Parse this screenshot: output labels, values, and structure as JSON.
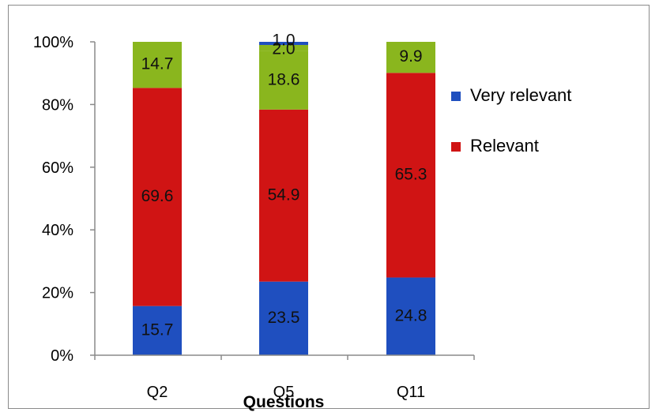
{
  "chart_data": {
    "type": "bar",
    "stacked": true,
    "categories": [
      "Q2",
      "Q5",
      "Q11"
    ],
    "series": [
      {
        "name": "Very relevant",
        "values": [
          15.7,
          23.5,
          24.8
        ],
        "color": "#1f4fbf"
      },
      {
        "name": "Relevant",
        "values": [
          69.6,
          54.9,
          65.3
        ],
        "color": "#d01414"
      },
      {
        "name": "",
        "values": [
          14.7,
          18.6,
          9.9
        ],
        "color": "#8ab61e"
      },
      {
        "name": "",
        "values": [
          0,
          2.0,
          0
        ],
        "color": "#8ab61e"
      },
      {
        "name": "",
        "values": [
          0,
          1.0,
          0
        ],
        "color": "#1f4fbf"
      }
    ],
    "data_labels": [
      [
        "15.7",
        "69.6",
        "14.7",
        "",
        ""
      ],
      [
        "23.5",
        "54.9",
        "18.6",
        "2.0",
        "1.0"
      ],
      [
        "24.8",
        "65.3",
        "9.9",
        "",
        ""
      ]
    ],
    "y_ticks": [
      "0%",
      "20%",
      "40%",
      "60%",
      "80%",
      "100%"
    ],
    "ylim": [
      0,
      100
    ],
    "xlabel": "Questions",
    "ylabel": "",
    "title": "",
    "legend_position": "right",
    "grid": false
  }
}
